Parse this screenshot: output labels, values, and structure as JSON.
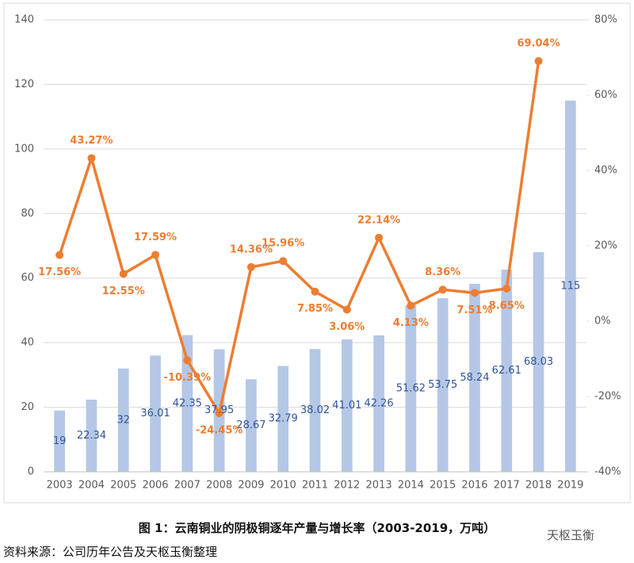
{
  "chart_data": {
    "type": "bar-line",
    "categories": [
      "2003",
      "2004",
      "2005",
      "2006",
      "2007",
      "2008",
      "2009",
      "2010",
      "2011",
      "2012",
      "2013",
      "2014",
      "2015",
      "2016",
      "2017",
      "2018",
      "2019"
    ],
    "series": [
      {
        "name": "阴极铜产量",
        "type": "bar",
        "color": "#b4c7e7",
        "label_color": "#2f5597",
        "values": [
          19,
          22.34,
          32,
          36.01,
          42.35,
          37.95,
          28.67,
          32.79,
          38.02,
          41.01,
          42.26,
          51.62,
          53.75,
          58.24,
          62.61,
          68.03,
          115
        ]
      },
      {
        "name": "增长率",
        "type": "line",
        "axis": "y2",
        "color": "#ed7d31",
        "values": [
          17.56,
          43.27,
          12.55,
          17.59,
          -10.39,
          -24.45,
          14.36,
          15.96,
          7.85,
          3.06,
          22.14,
          4.13,
          8.36,
          7.51,
          8.65,
          69.04,
          null
        ],
        "value_labels": [
          "17.56%",
          "43.27%",
          "12.55%",
          "17.59%",
          "-10.39%",
          "-24.45%",
          "14.36%",
          "15.96%",
          "7.85%",
          "3.06%",
          "22.14%",
          "4.13%",
          "8.36%",
          "7.51%",
          "8.65%",
          "69.04%",
          null
        ]
      }
    ],
    "ylim": [
      0,
      140
    ],
    "yticks": [
      0,
      20,
      40,
      60,
      80,
      100,
      120,
      140
    ],
    "y2lim": [
      -40,
      80
    ],
    "y2ticks": [
      {
        "value": -40,
        "label": "-40%"
      },
      {
        "value": -20,
        "label": "-20%"
      },
      {
        "value": 0,
        "label": "0%"
      },
      {
        "value": 20,
        "label": "20%"
      },
      {
        "value": 40,
        "label": "40%"
      },
      {
        "value": 60,
        "label": "60%"
      },
      {
        "value": 80,
        "label": "80%"
      }
    ],
    "grid": true
  },
  "caption": "图 1：云南铜业的阴极铜逐年产量与增长率（2003-2019，万吨）",
  "source": "资料来源：公司历年公告及天枢玉衡整理",
  "watermark": "天枢玉衡"
}
